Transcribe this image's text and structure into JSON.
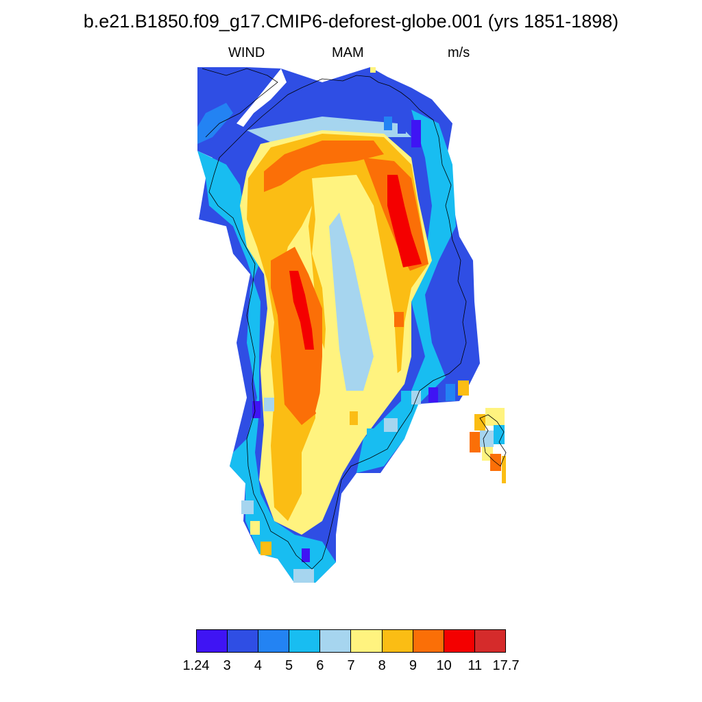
{
  "title": "b.e21.B1850.f09_g17.CMIP6-deforest-globe.001 (yrs 1851-1898)",
  "subtitle": {
    "variable": "WIND",
    "season": "MAM",
    "units": "m/s"
  },
  "colorbar": {
    "colors": [
      "#3f14f4",
      "#2f4ee4",
      "#2383f3",
      "#18bdf1",
      "#a6d5ef",
      "#fff37f",
      "#fbbd14",
      "#fb6f07",
      "#f40000",
      "#d52b2b"
    ],
    "labels": [
      "1.24",
      "3",
      "4",
      "5",
      "6",
      "7",
      "8",
      "9",
      "10",
      "11",
      "17.7"
    ]
  }
}
